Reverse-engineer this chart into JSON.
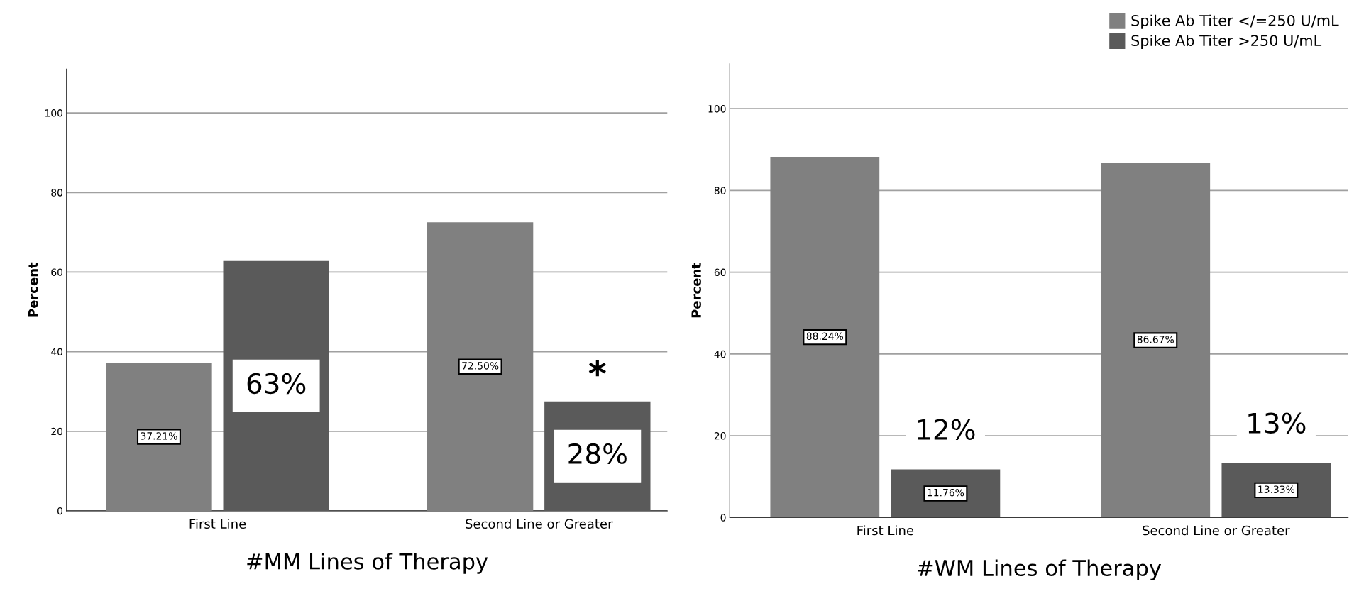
{
  "chart_data": [
    {
      "type": "bar",
      "xlabel": "#MM Lines of Therapy",
      "ylabel": "Percent",
      "categories": [
        "First Line",
        "Second Line or Greater"
      ],
      "series": [
        {
          "color": "#808080",
          "values": [
            37.21,
            72.5
          ],
          "value_labels": [
            "37.21%",
            "72.50%"
          ]
        },
        {
          "color": "#5a5a5a",
          "values": [
            62.79,
            27.5
          ],
          "value_labels": [
            "63%",
            "28%"
          ]
        }
      ],
      "annotations": [
        "*"
      ],
      "ylim": [
        0,
        111
      ],
      "yticks": [
        0,
        20,
        40,
        60,
        80,
        100
      ],
      "grid": "y",
      "legend": false
    },
    {
      "type": "bar",
      "xlabel": "#WM Lines of Therapy",
      "ylabel": "Percent",
      "categories": [
        "First Line",
        "Second Line or Greater"
      ],
      "series": [
        {
          "name": "Spike Ab Titer </=250 U/mL",
          "color": "#808080",
          "values": [
            88.24,
            86.67
          ],
          "value_labels": [
            "88.24%",
            "86.67%"
          ]
        },
        {
          "name": "Spike Ab Titer >250 U/mL",
          "color": "#5a5a5a",
          "values": [
            11.76,
            13.33
          ],
          "value_labels": [
            "11.76%",
            "13.33%"
          ]
        }
      ],
      "annotations": [
        "12%",
        "13%"
      ],
      "ylim": [
        0,
        111
      ],
      "yticks": [
        0,
        20,
        40,
        60,
        80,
        100
      ],
      "grid": "y",
      "legend": "top right"
    }
  ]
}
